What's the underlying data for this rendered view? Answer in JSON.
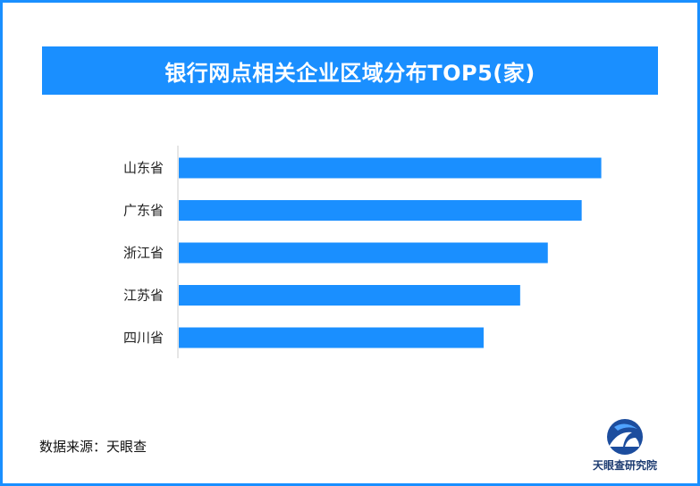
{
  "title": "银行网点相关企业区域分布TOP5(家)",
  "source": "数据来源：天眼查",
  "brand": {
    "name": "天眼查研究院",
    "logo_icon": "tianyancha-logo-icon"
  },
  "colors": {
    "accent": "#1a8fff",
    "bar": "#1a8fff",
    "axis": "#cccccc",
    "frame": "#1a8fff"
  },
  "chart_data": {
    "type": "bar",
    "orientation": "horizontal",
    "title": "银行网点相关企业区域分布TOP5(家)",
    "categories": [
      "山东省",
      "广东省",
      "浙江省",
      "江苏省",
      "四川省"
    ],
    "values": [
      474,
      452,
      414,
      383,
      342
    ],
    "xlim": [
      0,
      500
    ],
    "grid": false,
    "legend": "none"
  }
}
